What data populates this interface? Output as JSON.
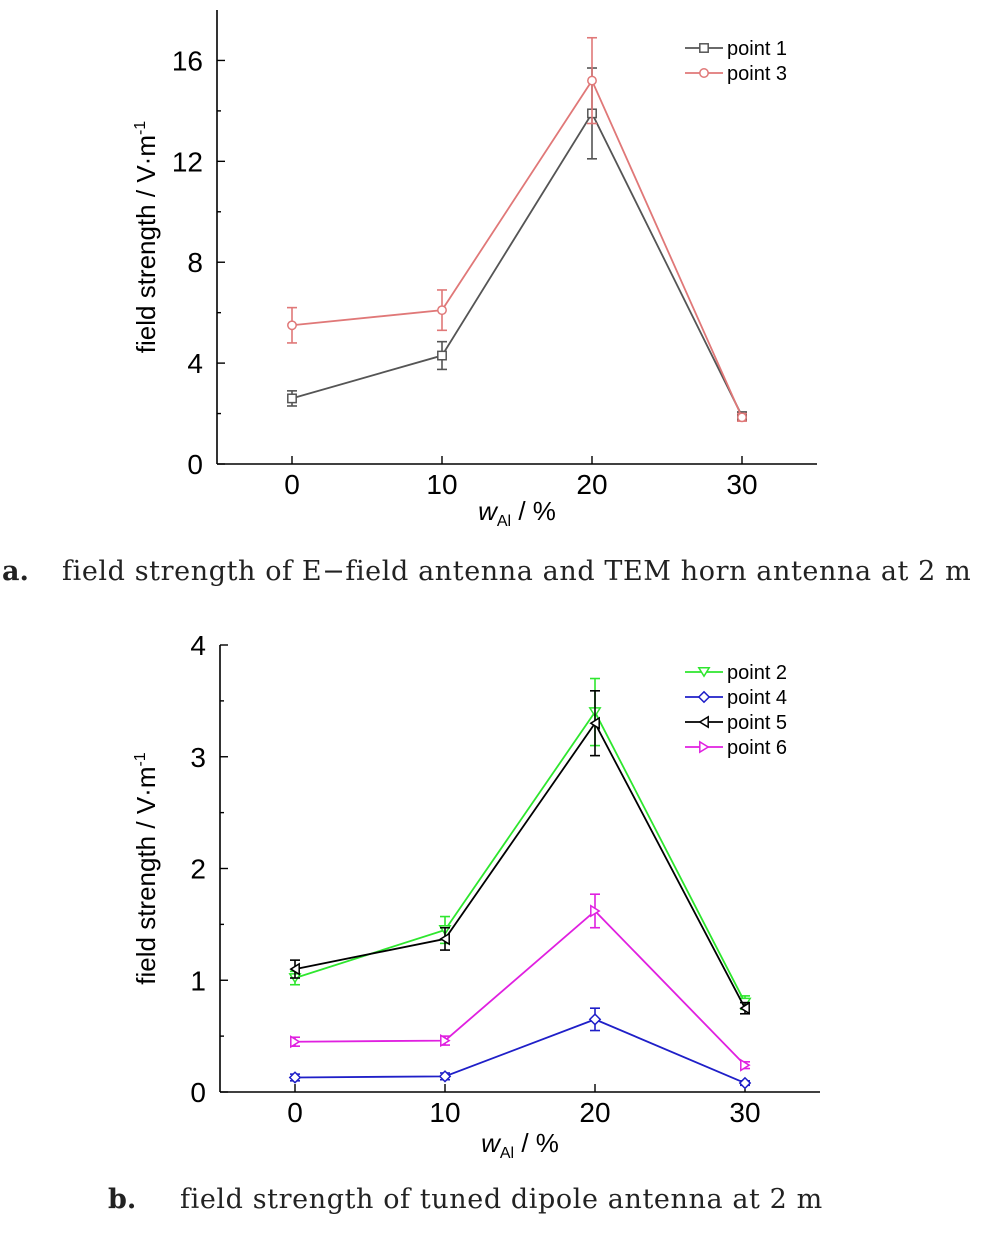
{
  "chart_data": [
    {
      "type": "line",
      "panel_label": "a.",
      "caption": "field strength of E−field antenna and TEM horn antenna at 2 m",
      "xlabel_main": "w",
      "xlabel_sub": "Al",
      "xlabel_tail": " / %",
      "ylabel_main": "field strength / V·m",
      "ylabel_sup": "-1",
      "x": [
        0,
        10,
        20,
        30
      ],
      "xlim": [
        -5,
        35
      ],
      "ylim": [
        0,
        18
      ],
      "xticks": [
        0,
        10,
        20,
        30
      ],
      "yticks": [
        0,
        4,
        8,
        12,
        16
      ],
      "legend_position": "top-right",
      "series": [
        {
          "name": "point 1",
          "color": "#555555",
          "marker": "square",
          "values": [
            2.6,
            4.3,
            13.9,
            1.9
          ],
          "errors": [
            0.3,
            0.55,
            1.8,
            0.15
          ]
        },
        {
          "name": "point 3",
          "color": "#e07878",
          "marker": "circle",
          "values": [
            5.5,
            6.1,
            15.2,
            1.85
          ],
          "errors": [
            0.7,
            0.8,
            1.7,
            0.15
          ]
        }
      ]
    },
    {
      "type": "line",
      "panel_label": "b.",
      "caption": "field strength of tuned dipole antenna at 2 m",
      "xlabel_main": "w",
      "xlabel_sub": "Al",
      "xlabel_tail": " / %",
      "ylabel_main": "field strength / V·m",
      "ylabel_sup": "-1",
      "x": [
        0,
        10,
        20,
        30
      ],
      "xlim": [
        -5,
        35
      ],
      "ylim": [
        0,
        4
      ],
      "xticks": [
        0,
        10,
        20,
        30
      ],
      "yticks": [
        0,
        1,
        2,
        3,
        4
      ],
      "legend_position": "top-right",
      "series": [
        {
          "name": "point 2",
          "color": "#2ee62e",
          "marker": "triangle-down",
          "values": [
            1.02,
            1.45,
            3.4,
            0.8
          ],
          "errors": [
            0.06,
            0.12,
            0.3,
            0.06
          ]
        },
        {
          "name": "point 4",
          "color": "#1f1fc8",
          "marker": "diamond",
          "values": [
            0.13,
            0.14,
            0.65,
            0.08
          ],
          "errors": [
            0.03,
            0.03,
            0.1,
            0.02
          ]
        },
        {
          "name": "point 5",
          "color": "#000000",
          "marker": "triangle-left",
          "values": [
            1.1,
            1.37,
            3.3,
            0.75
          ],
          "errors": [
            0.08,
            0.1,
            0.29,
            0.05
          ]
        },
        {
          "name": "point 6",
          "color": "#e020e0",
          "marker": "triangle-right",
          "values": [
            0.45,
            0.46,
            1.62,
            0.24
          ],
          "errors": [
            0.04,
            0.04,
            0.15,
            0.03
          ]
        }
      ]
    }
  ]
}
